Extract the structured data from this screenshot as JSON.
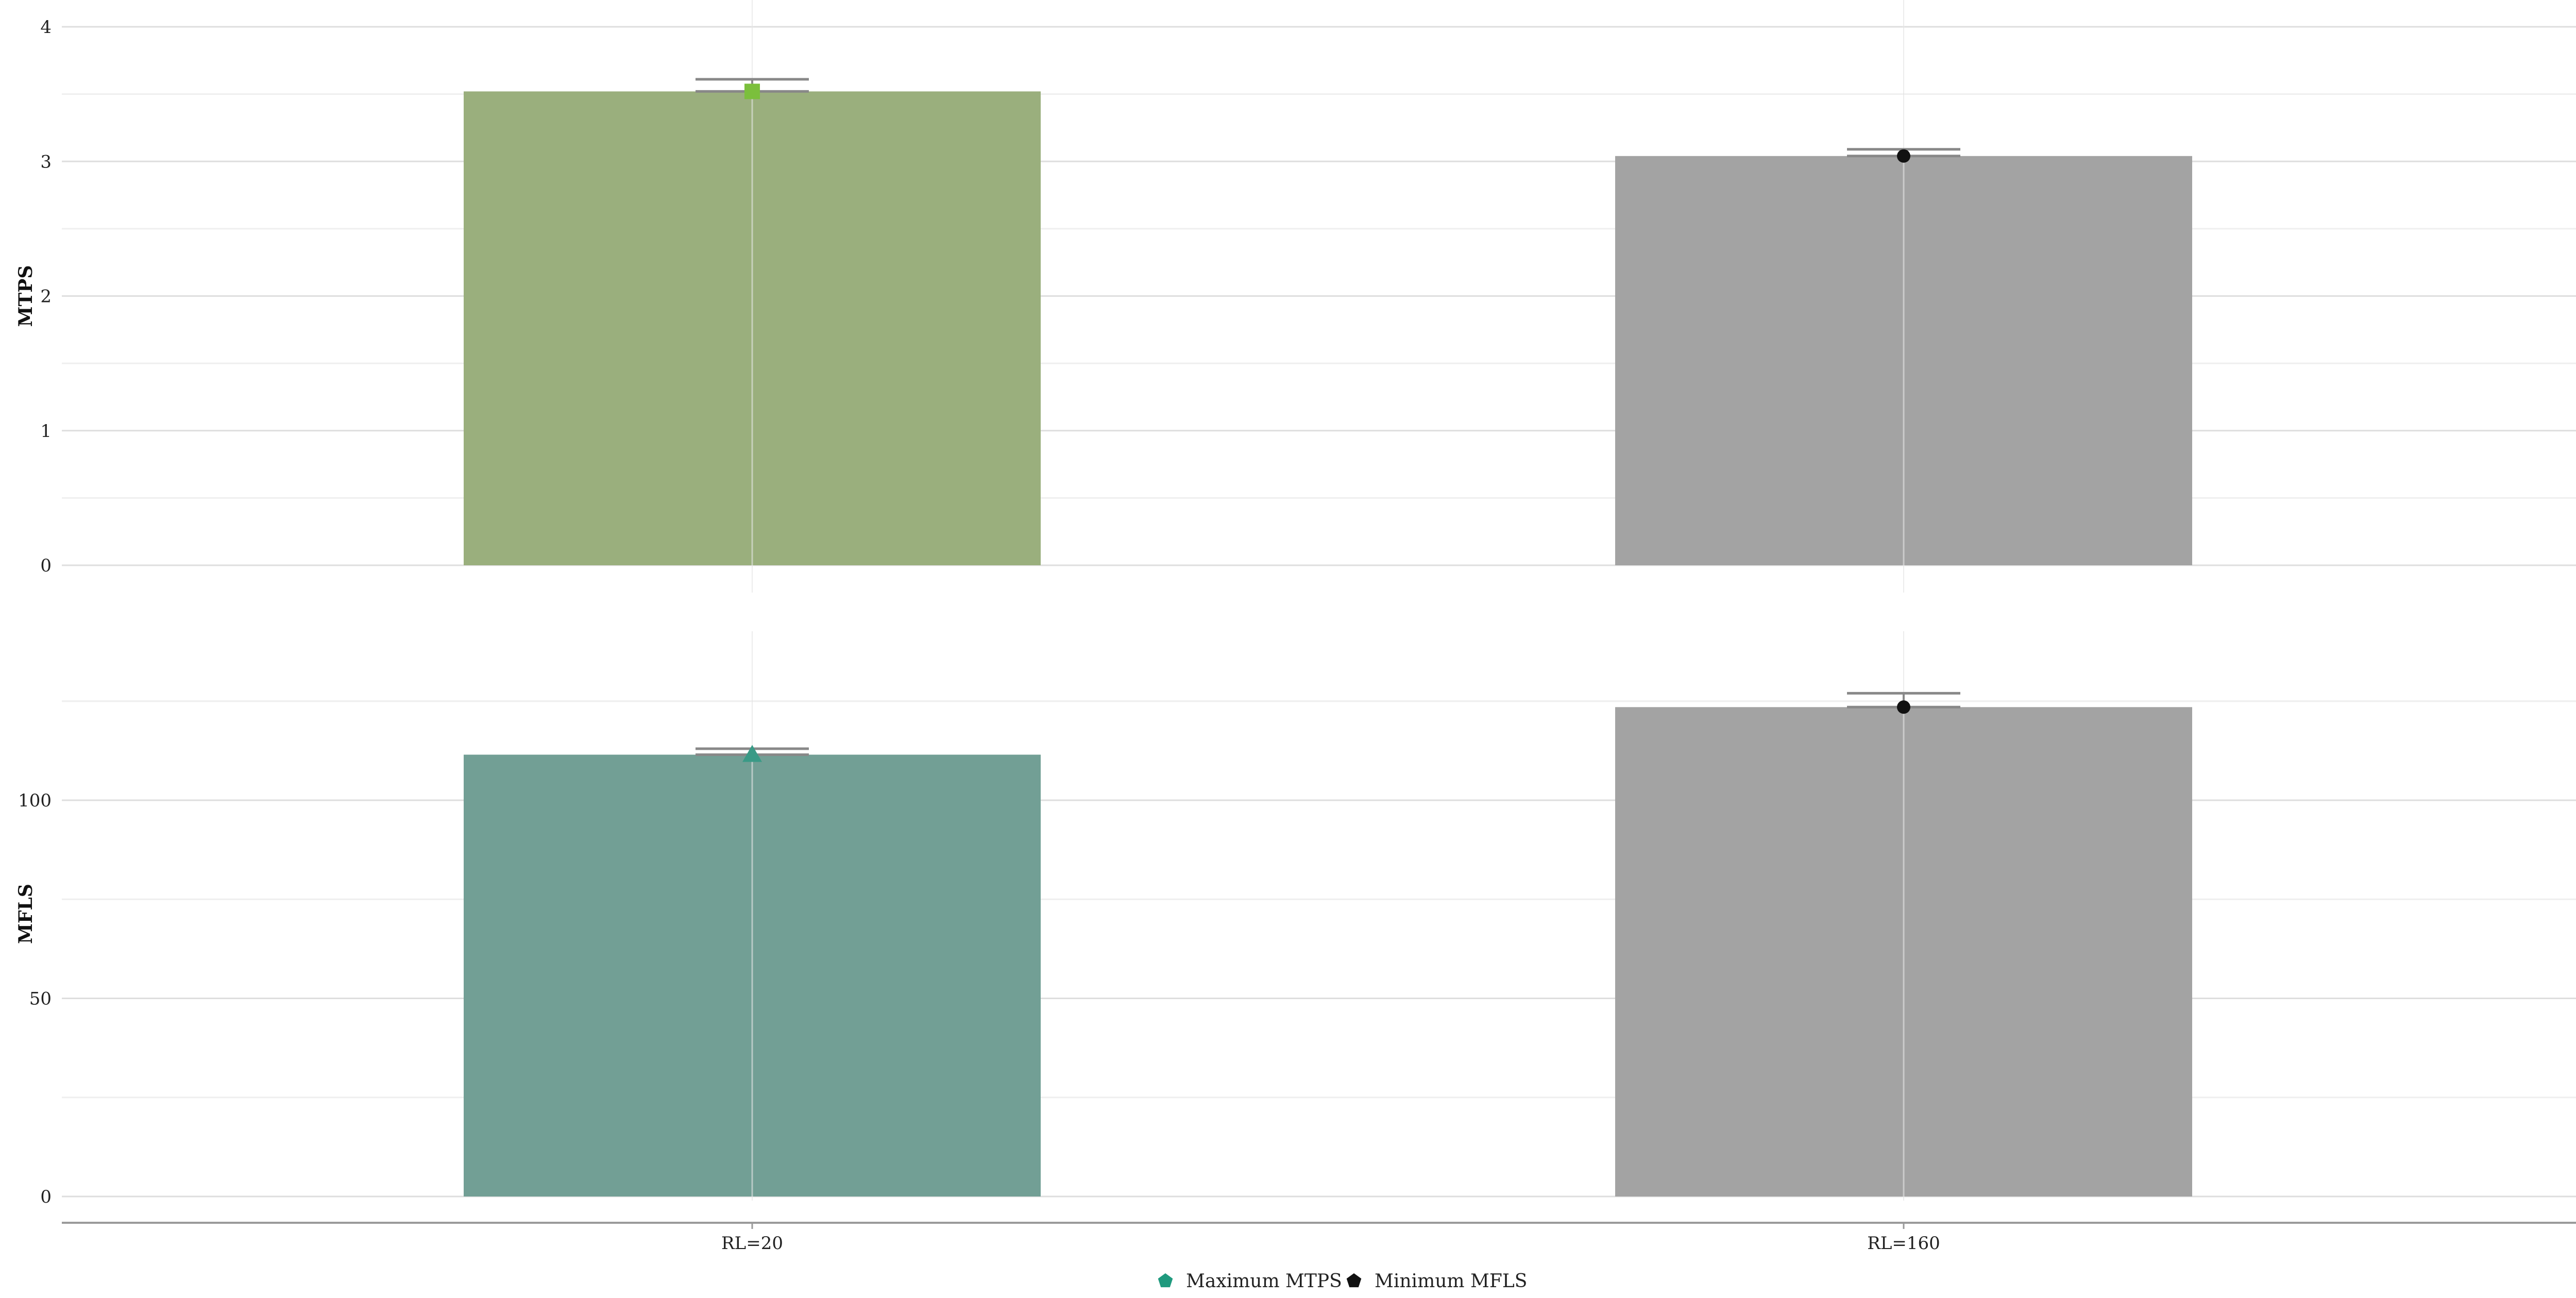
{
  "chart_data": [
    {
      "type": "bar",
      "panel": "top",
      "categories": [
        "RL=20",
        "RL=160"
      ],
      "values": [
        3.52,
        3.04
      ],
      "errors": [
        0.09,
        0.05
      ],
      "ylabel": "MTPS",
      "ylim": [
        0,
        4
      ],
      "yticks": [
        "0",
        "1",
        "2",
        "3",
        "4"
      ],
      "bar_colors": [
        "#9aaf7d",
        "#a3a3a3"
      ],
      "marker": "square",
      "marker_colors": [
        "#7bbf3c",
        "#111111"
      ],
      "grid": true
    },
    {
      "type": "bar",
      "panel": "bottom",
      "categories": [
        "RL=20",
        "RL=160"
      ],
      "values": [
        111.5,
        123.5
      ],
      "errors": [
        1.5,
        3.5
      ],
      "ylabel": "MFLS",
      "ylim": [
        0,
        143
      ],
      "yticks": [
        "0",
        "50",
        "100"
      ],
      "bar_colors": [
        "#729f95",
        "#a3a3a3"
      ],
      "marker": "triangle",
      "marker_colors": [
        "#3a9a86",
        "#111111"
      ],
      "grid": true
    }
  ],
  "xtick_labels": [
    "RL=20",
    "RL=160"
  ],
  "legend": {
    "placement": "bottom-center",
    "items": [
      {
        "label": "Maximum MTPS",
        "color": "#1f9a7e",
        "icon": "pentagon-marker"
      },
      {
        "label": "Minimum MFLS",
        "color": "#111111",
        "icon": "pentagon-marker"
      }
    ]
  }
}
